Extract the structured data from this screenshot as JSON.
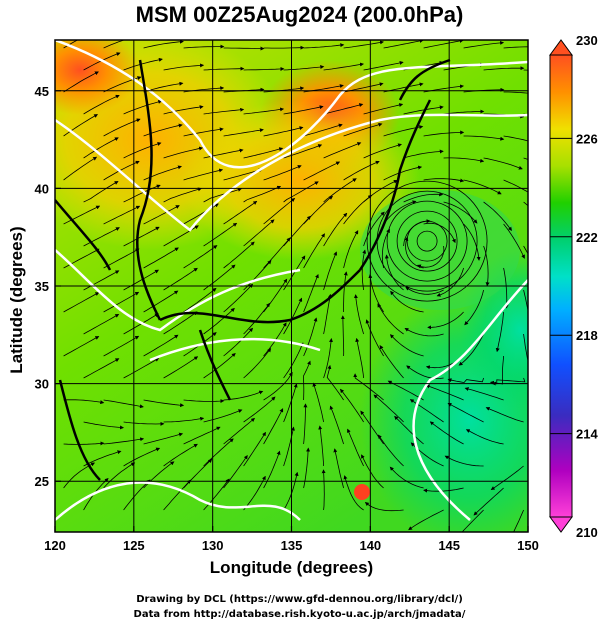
{
  "title": "MSM 00Z25Aug2024 (200.0hPa)",
  "credits": {
    "line1": "Drawing by DCL (https://www.gfd-dennou.org/library/dcl/)",
    "line2": "Data from http://database.rish.kyoto-u.ac.jp/arch/jmadata/"
  },
  "chart_data": {
    "type": "heatmap",
    "title": "MSM 00Z25Aug2024 (200.0hPa)",
    "xlabel": "Longitude (degrees)",
    "ylabel": "Latitude  (degrees)",
    "xlim": [
      120,
      150
    ],
    "ylim": [
      22.4,
      47.6
    ],
    "xticks": [
      "120",
      "125",
      "130",
      "135",
      "140",
      "145",
      "150"
    ],
    "yticks": [
      "25",
      "30",
      "35",
      "40",
      "45"
    ],
    "grid": true,
    "overlay": "streamlines with arrowheads; white temperature contours; coastlines",
    "colorbar": {
      "ticks": [
        "210",
        "214",
        "218",
        "222",
        "226",
        "230"
      ],
      "min": 210,
      "max": 230,
      "colors": [
        "#ff3fd0",
        "#b000c0",
        "#3a2cc0",
        "#1050ff",
        "#00b0ff",
        "#00e0c8",
        "#00d070",
        "#20d000",
        "#a8e000",
        "#f0e000",
        "#ff9000",
        "#ff5020"
      ]
    },
    "features": [
      {
        "label": "warm ridge",
        "lon": 137.5,
        "lat": 44,
        "value": 228
      },
      {
        "label": "cyclonic vortex",
        "lon": 143.6,
        "lat": 37.3
      }
    ]
  }
}
